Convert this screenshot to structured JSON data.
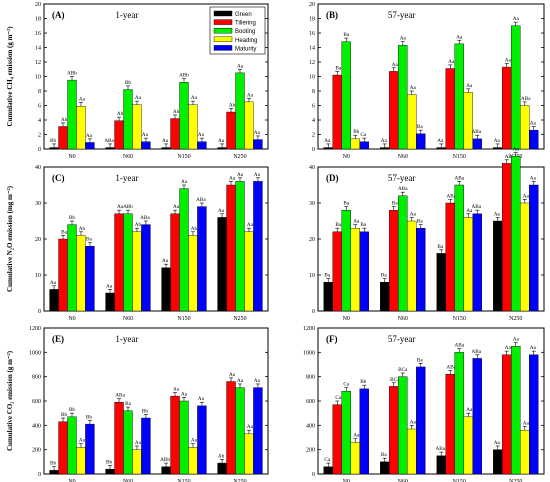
{
  "chart_data": [
    {
      "type": "bar",
      "letter": "(A)",
      "title": "1-year",
      "ylabel": "Cumulative CH₄ emission (g m⁻²)",
      "ylim": [
        0,
        20
      ],
      "yticks": [
        0,
        2,
        4,
        6,
        8,
        10,
        12,
        14,
        16,
        18,
        20
      ],
      "categories": [
        "N0",
        "N60",
        "N150",
        "N250"
      ],
      "series": [
        {
          "name": "Green",
          "color": "#000000",
          "values": [
            0.2,
            0.2,
            0.2,
            0.2
          ],
          "labels": [
            "Bb",
            "ABa",
            "Aa",
            "Aa"
          ]
        },
        {
          "name": "Tillering",
          "color": "#ff0000",
          "values": [
            3.1,
            3.9,
            4.2,
            5.1
          ],
          "labels": [
            "Ab",
            "Ab",
            "Ab",
            "Ab"
          ]
        },
        {
          "name": "Booting",
          "color": "#00ee00",
          "values": [
            9.5,
            8.2,
            9.2,
            10.5
          ],
          "labels": [
            "ABb",
            "Bb",
            "ABb",
            "Aa"
          ]
        },
        {
          "name": "Heading",
          "color": "#ffff00",
          "values": [
            5.9,
            6.1,
            6.1,
            6.5
          ],
          "labels": [
            "Aa",
            "Aa",
            "Aa",
            "Aa"
          ]
        },
        {
          "name": "Maturity",
          "color": "#0000ff",
          "values": [
            0.9,
            1.0,
            1.0,
            1.3
          ],
          "labels": [
            "Aa",
            "Aa",
            "Aa",
            "Aa"
          ]
        }
      ]
    },
    {
      "type": "bar",
      "letter": "(B)",
      "title": "57-year",
      "ylabel": "",
      "ylim": [
        0,
        20
      ],
      "yticks": [
        0,
        2,
        4,
        6,
        8,
        10,
        12,
        14,
        16,
        18,
        20
      ],
      "categories": [
        "N0",
        "N60",
        "N150",
        "N250"
      ],
      "series": [
        {
          "name": "Green",
          "color": "#000000",
          "values": [
            0.2,
            0.2,
            0.2,
            0.2
          ],
          "labels": [
            "Aa",
            "Aa",
            "Aa",
            "Aa"
          ]
        },
        {
          "name": "Tillering",
          "color": "#ff0000",
          "values": [
            10.2,
            10.7,
            11.1,
            11.3
          ],
          "labels": [
            "Ba",
            "Aa",
            "Aa",
            "Aa"
          ]
        },
        {
          "name": "Booting",
          "color": "#00ee00",
          "values": [
            14.8,
            14.3,
            14.5,
            17.0
          ],
          "labels": [
            "Ba",
            "Aa",
            "Aa",
            "Aa"
          ]
        },
        {
          "name": "Heading",
          "color": "#ffff00",
          "values": [
            1.4,
            7.5,
            7.8,
            6.0
          ],
          "labels": [
            "Bb",
            "Aa",
            "Aa",
            "ABa"
          ]
        },
        {
          "name": "Maturity",
          "color": "#0000ff",
          "values": [
            1.0,
            2.1,
            1.4,
            2.6
          ],
          "labels": [
            "Ca",
            "Ba",
            "ABa",
            "Aa"
          ]
        }
      ]
    },
    {
      "type": "bar",
      "letter": "(C)",
      "title": "1-year",
      "ylabel": "Cumulative N₂O emission (mg m⁻²)",
      "ylim": [
        0,
        40
      ],
      "yticks": [
        0,
        10,
        20,
        30,
        40
      ],
      "categories": [
        "N0",
        "N60",
        "N150",
        "N250"
      ],
      "series": [
        {
          "name": "Green",
          "color": "#000000",
          "values": [
            6,
            5,
            12,
            26
          ],
          "labels": [
            "Aa",
            "Aa",
            "Aa",
            "Aa"
          ]
        },
        {
          "name": "Tillering",
          "color": "#ff0000",
          "values": [
            20,
            27,
            27,
            35
          ],
          "labels": [
            "Ba",
            "Aa",
            "Aa",
            "Aa"
          ]
        },
        {
          "name": "Booting",
          "color": "#00ee00",
          "values": [
            24,
            27,
            34,
            36
          ],
          "labels": [
            "Bb",
            "ABb",
            "Aa",
            "Aa"
          ]
        },
        {
          "name": "Heading",
          "color": "#ffff00",
          "values": [
            21,
            22,
            21,
            22
          ],
          "labels": [
            "Ab",
            "Ab",
            "Ab",
            "Aa"
          ]
        },
        {
          "name": "Maturity",
          "color": "#0000ff",
          "values": [
            18,
            24,
            29,
            36
          ],
          "labels": [
            "Ba",
            "ABa",
            "ABa",
            "Aa"
          ]
        }
      ]
    },
    {
      "type": "bar",
      "letter": "(D)",
      "title": "57-year",
      "ylabel": "",
      "ylim": [
        0,
        40
      ],
      "yticks": [
        0,
        10,
        20,
        30,
        40
      ],
      "categories": [
        "N0",
        "N60",
        "N150",
        "N250"
      ],
      "series": [
        {
          "name": "Green",
          "color": "#000000",
          "values": [
            8,
            8,
            16,
            25
          ],
          "labels": [
            "Ba",
            "Ba",
            "Ba",
            "Aa"
          ]
        },
        {
          "name": "Tillering",
          "color": "#ff0000",
          "values": [
            22,
            28,
            30,
            41
          ],
          "labels": [
            "Ba",
            "Ba",
            "ABa",
            "Aa"
          ]
        },
        {
          "name": "Booting",
          "color": "#00ee00",
          "values": [
            28,
            32,
            35,
            43
          ],
          "labels": [
            "Ba",
            "ABa",
            "ABa",
            "Aa"
          ]
        },
        {
          "name": "Heading",
          "color": "#ffff00",
          "values": [
            23,
            25,
            26,
            30
          ],
          "labels": [
            "Aa",
            "Aa",
            "Aa",
            "Aa"
          ]
        },
        {
          "name": "Maturity",
          "color": "#0000ff",
          "values": [
            22,
            23,
            27,
            35
          ],
          "labels": [
            "Ba",
            "Ba",
            "ABa",
            "Aa"
          ]
        }
      ]
    },
    {
      "type": "bar",
      "letter": "(E)",
      "title": "1-year",
      "ylabel": "Cumulative CO₂ emission (g m⁻²)",
      "ylim": [
        0,
        1200
      ],
      "yticks": [
        0,
        200,
        400,
        600,
        800,
        1000,
        1200
      ],
      "categories": [
        "N0",
        "N60",
        "N150",
        "N250"
      ],
      "series": [
        {
          "name": "Green",
          "color": "#000000",
          "values": [
            30,
            40,
            60,
            90
          ],
          "labels": [
            "Bb",
            "Bb",
            "ABb",
            "Ab"
          ]
        },
        {
          "name": "Tillering",
          "color": "#ff0000",
          "values": [
            430,
            590,
            640,
            760
          ],
          "labels": [
            "Bb",
            "ABa",
            "Aa",
            "Aa"
          ]
        },
        {
          "name": "Booting",
          "color": "#00ee00",
          "values": [
            470,
            520,
            600,
            710
          ],
          "labels": [
            "Bb",
            "Ba",
            "Aa",
            "Aa"
          ]
        },
        {
          "name": "Heading",
          "color": "#ffff00",
          "values": [
            220,
            200,
            220,
            330
          ],
          "labels": [
            "Aa",
            "Aa",
            "Aa",
            "Aa"
          ]
        },
        {
          "name": "Maturity",
          "color": "#0000ff",
          "values": [
            410,
            460,
            560,
            710
          ],
          "labels": [
            "Bb",
            "Bb",
            "Aa",
            "Aa"
          ]
        }
      ]
    },
    {
      "type": "bar",
      "letter": "(F)",
      "title": "57-year",
      "ylabel": "",
      "ylim": [
        0,
        1200
      ],
      "yticks": [
        0,
        200,
        400,
        600,
        800,
        1000,
        1200
      ],
      "categories": [
        "N0",
        "N60",
        "N150",
        "N250"
      ],
      "series": [
        {
          "name": "Green",
          "color": "#000000",
          "values": [
            60,
            100,
            150,
            200
          ],
          "labels": [
            "Ca",
            "Ba",
            "ABa",
            "Aa"
          ]
        },
        {
          "name": "Tillering",
          "color": "#ff0000",
          "values": [
            570,
            720,
            820,
            980
          ],
          "labels": [
            "Ca",
            "BCa",
            "ABa",
            "Aa"
          ]
        },
        {
          "name": "Booting",
          "color": "#00ee00",
          "values": [
            680,
            800,
            1000,
            1050
          ],
          "labels": [
            "Ca",
            "BCa",
            "ABa",
            "Aa"
          ]
        },
        {
          "name": "Heading",
          "color": "#ffff00",
          "values": [
            260,
            370,
            470,
            360
          ],
          "labels": [
            "Aa",
            "Aa",
            "Aa",
            "Aa"
          ]
        },
        {
          "name": "Maturity",
          "color": "#0000ff",
          "values": [
            700,
            880,
            950,
            980
          ],
          "labels": [
            "Bb",
            "Ba",
            "ABa",
            "Aa"
          ]
        }
      ]
    }
  ],
  "legend": {
    "entries": [
      {
        "name": "Green",
        "color": "#000000"
      },
      {
        "name": "Tillering",
        "color": "#ff0000"
      },
      {
        "name": "Booting",
        "color": "#00ee00"
      },
      {
        "name": "Heading",
        "color": "#ffff00"
      },
      {
        "name": "Maturity",
        "color": "#0000ff"
      }
    ]
  }
}
